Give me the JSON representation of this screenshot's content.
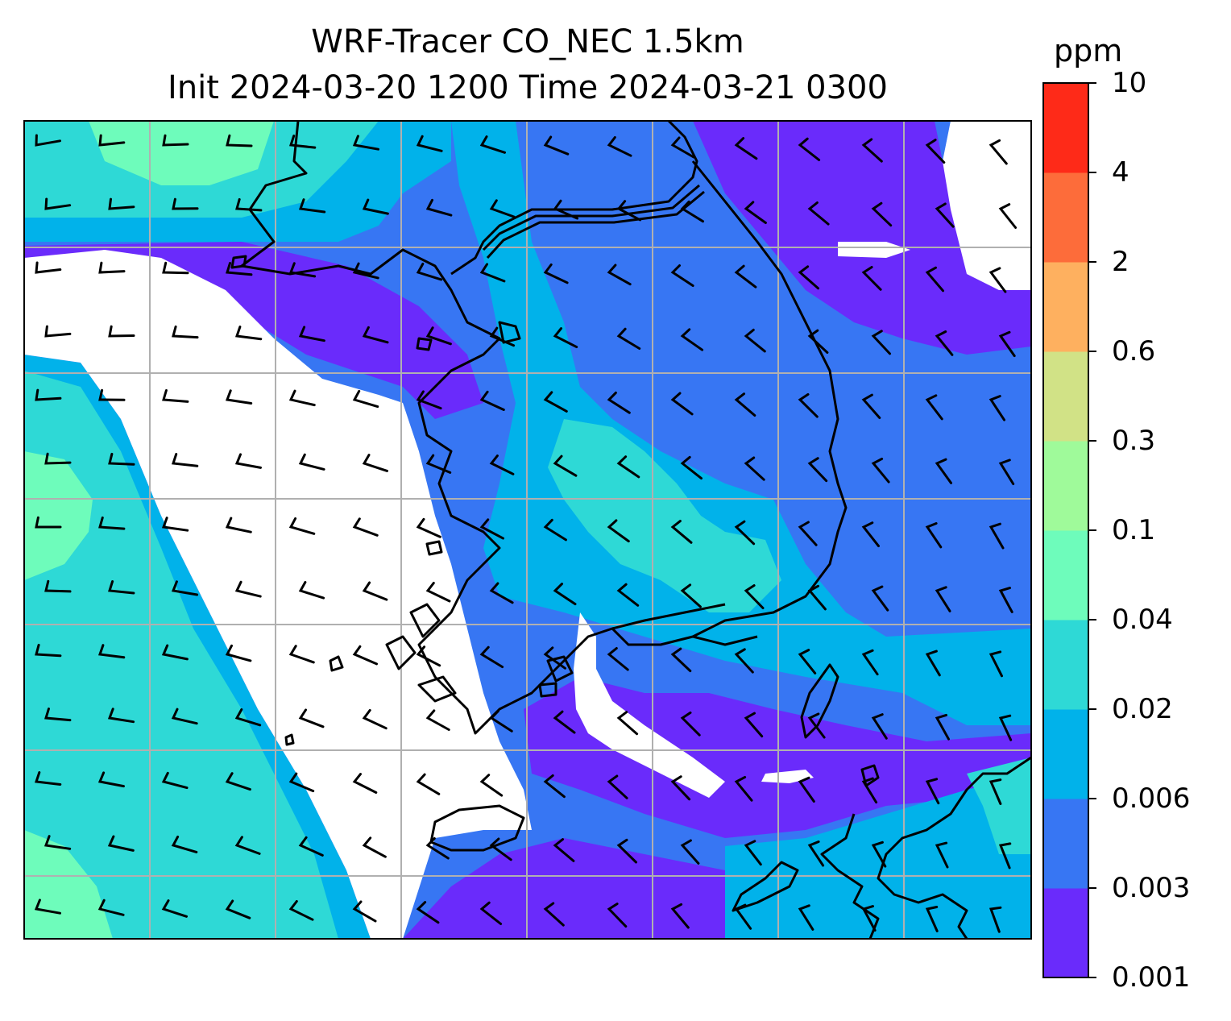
{
  "title": {
    "line1": "WRF-Tracer CO_NEC 1.5km",
    "line2": "Init 2024-03-20 1200 Time 2024-03-21 0300"
  },
  "colorbar": {
    "unit": "ppm",
    "levels": [
      "0.001",
      "0.003",
      "0.006",
      "0.02",
      "0.04",
      "0.1",
      "0.3",
      "0.6",
      "2",
      "4",
      "10"
    ],
    "colors": [
      "#6a2bfb",
      "#3776f3",
      "#01b2ea",
      "#2ed9d6",
      "#6efcbb",
      "#9ffa9a",
      "#d1e286",
      "#feb05f",
      "#fd6c3a",
      "#fe2a18"
    ]
  },
  "map": {
    "fill_colors": {
      "below_min": "#ffffff",
      "gridline": "#b0b0b0",
      "coastline": "#000000",
      "barb": "#000000"
    }
  }
}
